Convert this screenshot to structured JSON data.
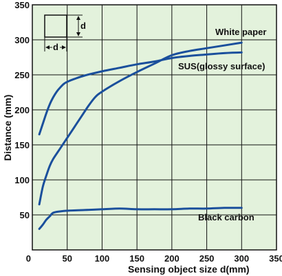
{
  "chart_data": {
    "type": "line",
    "xlabel": "Sensing object size d(mm)",
    "ylabel": "Distance (mm)",
    "xlim": [
      0,
      350
    ],
    "ylim": [
      0,
      350
    ],
    "xticks": [
      0,
      50,
      100,
      150,
      200,
      250,
      300,
      350
    ],
    "yticks": [
      50,
      100,
      150,
      200,
      250,
      300,
      350
    ],
    "grid": true,
    "colors": {
      "plot_bg": "#e3f2dc",
      "line": "#1a4f9c",
      "grid": "#111111"
    },
    "series": [
      {
        "name": "White paper",
        "x": [
          10,
          15,
          20,
          25,
          30,
          40,
          50,
          60,
          70,
          80,
          90,
          100,
          125,
          150,
          175,
          200,
          225,
          250,
          275,
          300
        ],
        "y": [
          65,
          90,
          106,
          120,
          130,
          145,
          160,
          175,
          190,
          205,
          218,
          226,
          241,
          254,
          266,
          278,
          284,
          288,
          292,
          296
        ]
      },
      {
        "name": "SUS(glossy surface)",
        "x": [
          10,
          15,
          20,
          25,
          30,
          35,
          40,
          45,
          50,
          60,
          75,
          100,
          125,
          150,
          175,
          200,
          225,
          250,
          275,
          300
        ],
        "y": [
          165,
          180,
          195,
          208,
          218,
          226,
          232,
          237,
          240,
          244,
          249,
          255,
          260,
          265,
          269,
          274,
          277,
          279,
          281,
          282
        ]
      },
      {
        "name": "Black carbon",
        "x": [
          10,
          15,
          20,
          25,
          30,
          40,
          50,
          75,
          100,
          125,
          150,
          175,
          200,
          225,
          250,
          275,
          300
        ],
        "y": [
          30,
          36,
          43,
          48,
          53,
          55,
          56,
          57,
          58,
          59,
          58,
          58,
          58,
          59,
          59,
          60,
          60
        ]
      }
    ],
    "inset": {
      "dimension_label": "d"
    }
  }
}
